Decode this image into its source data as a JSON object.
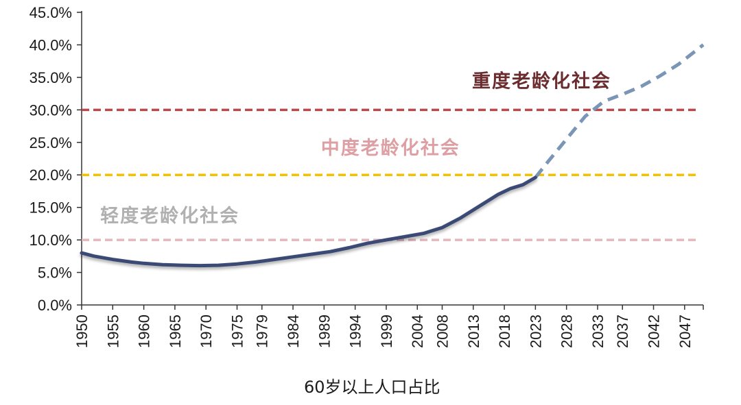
{
  "chart_data": {
    "type": "line",
    "title": "",
    "xlabel": "",
    "ylabel": "",
    "ylim": [
      0,
      45
    ],
    "y_ticks": [
      "0.0%",
      "5.0%",
      "10.0%",
      "15.0%",
      "20.0%",
      "25.0%",
      "30.0%",
      "35.0%",
      "40.0%",
      "45.0%"
    ],
    "y_tick_values": [
      0,
      5,
      10,
      15,
      20,
      25,
      30,
      35,
      40,
      45
    ],
    "x_ticks": [
      "1950",
      "1955",
      "1960",
      "1965",
      "1970",
      "1975",
      "1979",
      "1984",
      "1989",
      "1994",
      "1999",
      "2004",
      "2008",
      "2013",
      "2018",
      "2023",
      "2028",
      "2033",
      "2037",
      "2042",
      "2047"
    ],
    "xlim": [
      1950,
      2050
    ],
    "grid": false,
    "legend": {
      "position": "bottom",
      "label": "60岁以上人口占比"
    },
    "series": [
      {
        "name": "60岁以上人口占比",
        "color": "#3b4a75",
        "x": [
          1950,
          1952,
          1955,
          1958,
          1960,
          1963,
          1966,
          1969,
          1972,
          1975,
          1978,
          1981,
          1984,
          1987,
          1990,
          1993,
          1996,
          1999,
          2002,
          2005,
          2008,
          2011,
          2014,
          2017,
          2019,
          2021,
          2023,
          2025,
          2028,
          2031,
          2034,
          2037,
          2040,
          2043,
          2046,
          2050
        ],
        "values": [
          8.0,
          7.5,
          7.0,
          6.6,
          6.4,
          6.2,
          6.1,
          6.05,
          6.1,
          6.3,
          6.6,
          7.0,
          7.4,
          7.8,
          8.2,
          8.8,
          9.5,
          10.0,
          10.5,
          11.0,
          11.9,
          13.4,
          15.2,
          17.0,
          17.9,
          18.5,
          19.6,
          22.0,
          25.5,
          29.0,
          31.3,
          32.4,
          33.6,
          35.2,
          37.0,
          40.0
        ],
        "projection_from": 2023
      }
    ],
    "thresholds": [
      {
        "label": "轻度老龄化社会",
        "value": 10,
        "color": "#e2b7bd",
        "label_color": "#b0b0b0"
      },
      {
        "label": "中度老龄化社会",
        "value": 20,
        "color": "#f5c000",
        "label_color": "#dd9fa3"
      },
      {
        "label": "重度老龄化社会",
        "value": 30,
        "color": "#b84a4d",
        "label_color": "#6b2c2f"
      }
    ],
    "projection_color": "#7a95b5"
  }
}
